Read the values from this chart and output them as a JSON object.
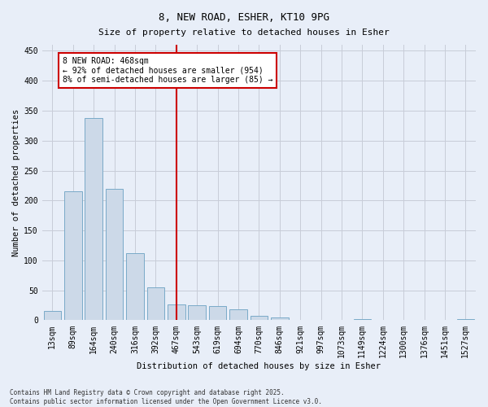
{
  "title": "8, NEW ROAD, ESHER, KT10 9PG",
  "subtitle": "Size of property relative to detached houses in Esher",
  "xlabel": "Distribution of detached houses by size in Esher",
  "ylabel": "Number of detached properties",
  "categories": [
    "13sqm",
    "89sqm",
    "164sqm",
    "240sqm",
    "316sqm",
    "392sqm",
    "467sqm",
    "543sqm",
    "619sqm",
    "694sqm",
    "770sqm",
    "846sqm",
    "921sqm",
    "997sqm",
    "1073sqm",
    "1149sqm",
    "1224sqm",
    "1300sqm",
    "1376sqm",
    "1451sqm",
    "1527sqm"
  ],
  "values": [
    15,
    215,
    338,
    220,
    112,
    55,
    27,
    25,
    24,
    18,
    8,
    5,
    0,
    0,
    0,
    2,
    0,
    0,
    0,
    0,
    2
  ],
  "bar_color": "#ccd9e8",
  "bar_edge_color": "#7aaac8",
  "vline_x_index": 6,
  "vline_color": "#cc0000",
  "annotation_line1": "8 NEW ROAD: 468sqm",
  "annotation_line2": "← 92% of detached houses are smaller (954)",
  "annotation_line3": "8% of semi-detached houses are larger (85) →",
  "annotation_box_color": "#ffffff",
  "annotation_box_edge": "#cc0000",
  "ylim": [
    0,
    460
  ],
  "yticks": [
    0,
    50,
    100,
    150,
    200,
    250,
    300,
    350,
    400,
    450
  ],
  "footnote": "Contains HM Land Registry data © Crown copyright and database right 2025.\nContains public sector information licensed under the Open Government Licence v3.0.",
  "background_color": "#e8eef8",
  "plot_bg_color": "#e8eef8",
  "grid_color": "#c8ccd8",
  "title_fontsize": 9,
  "subtitle_fontsize": 8,
  "axis_label_fontsize": 7.5,
  "tick_fontsize": 7,
  "annotation_fontsize": 7,
  "footnote_fontsize": 5.5
}
